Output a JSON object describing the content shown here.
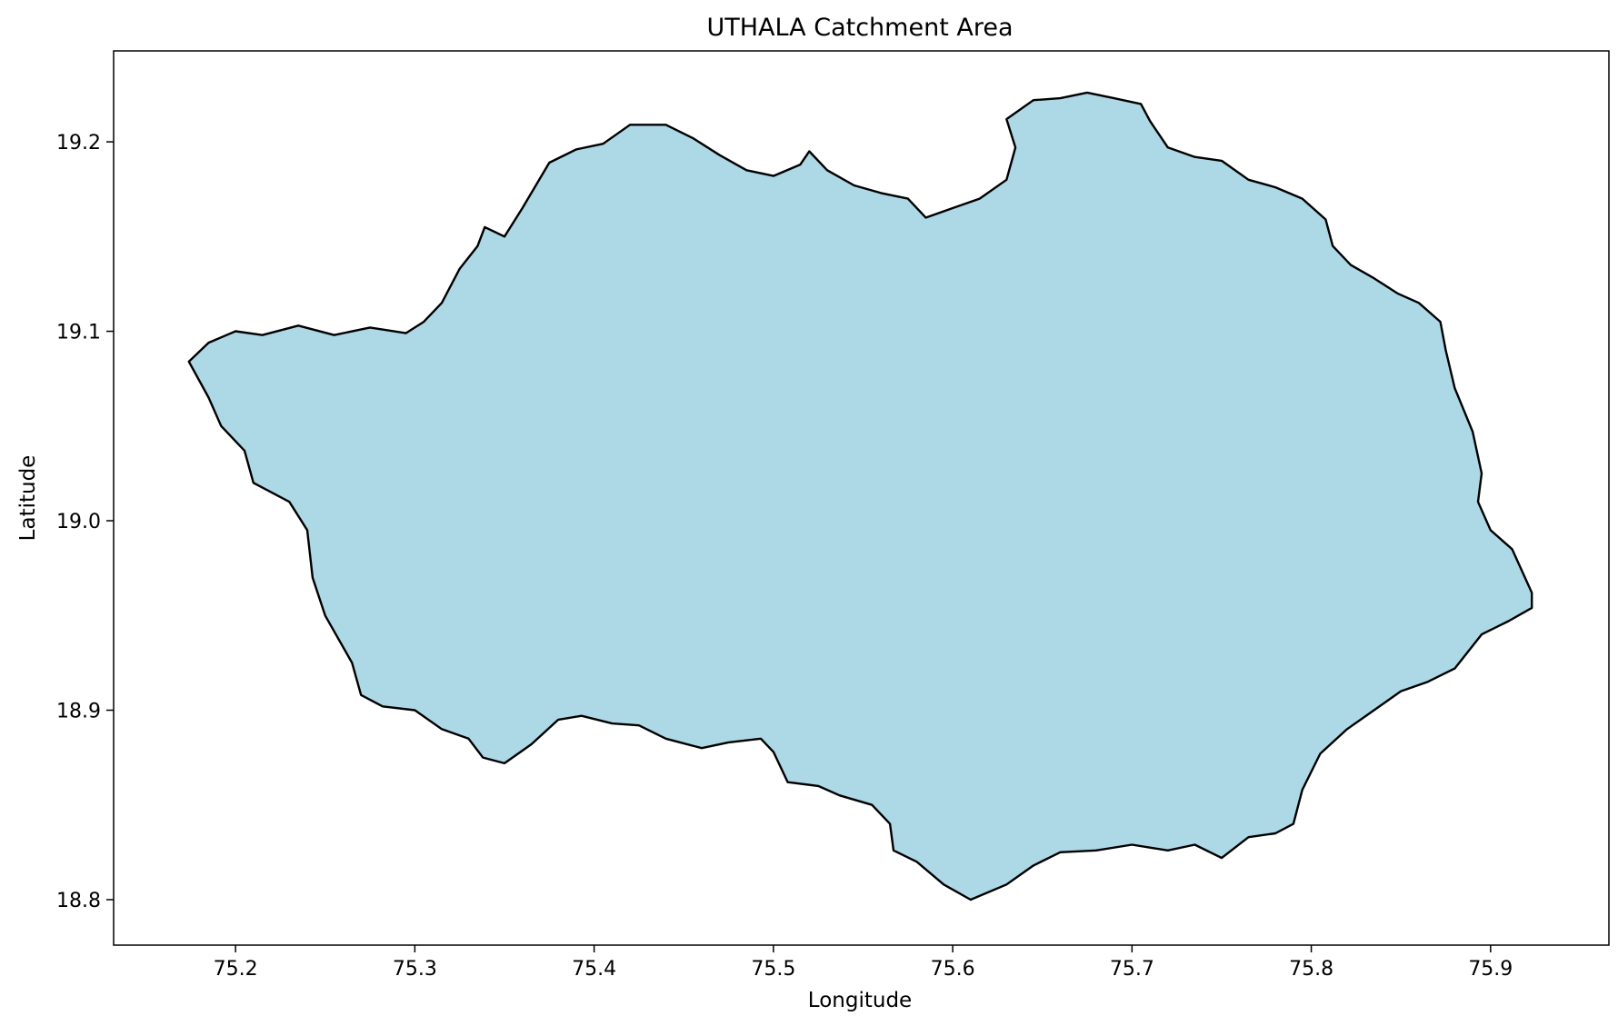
{
  "title": "UTHALA Catchment Area",
  "xlabel": "Longitude",
  "ylabel": "Latitude",
  "fill_color": "#add8e6",
  "edge_color": "#000000",
  "chart_data": {
    "type": "map",
    "title": "UTHALA Catchment Area",
    "xlabel": "Longitude",
    "ylabel": "Latitude",
    "xlim": [
      75.132,
      75.966
    ],
    "ylim": [
      18.776,
      19.248
    ],
    "xticks": [
      75.2,
      75.3,
      75.4,
      75.5,
      75.6,
      75.7,
      75.8,
      75.9
    ],
    "xtick_labels": [
      "75.2",
      "75.3",
      "75.4",
      "75.5",
      "75.6",
      "75.7",
      "75.8",
      "75.9"
    ],
    "yticks": [
      18.8,
      18.9,
      19.0,
      19.1,
      19.2
    ],
    "ytick_labels": [
      "18.8",
      "18.9",
      "19.0",
      "19.1",
      "19.2"
    ],
    "grid": false,
    "boundary_lonlat": [
      [
        75.174,
        19.084
      ],
      [
        75.185,
        19.094
      ],
      [
        75.2,
        19.1
      ],
      [
        75.215,
        19.098
      ],
      [
        75.235,
        19.103
      ],
      [
        75.255,
        19.098
      ],
      [
        75.275,
        19.102
      ],
      [
        75.295,
        19.099
      ],
      [
        75.305,
        19.105
      ],
      [
        75.315,
        19.115
      ],
      [
        75.325,
        19.133
      ],
      [
        75.335,
        19.145
      ],
      [
        75.339,
        19.155
      ],
      [
        75.35,
        19.15
      ],
      [
        75.36,
        19.165
      ],
      [
        75.375,
        19.189
      ],
      [
        75.39,
        19.196
      ],
      [
        75.405,
        19.199
      ],
      [
        75.42,
        19.209
      ],
      [
        75.44,
        19.209
      ],
      [
        75.455,
        19.202
      ],
      [
        75.47,
        19.193
      ],
      [
        75.485,
        19.185
      ],
      [
        75.5,
        19.182
      ],
      [
        75.515,
        19.188
      ],
      [
        75.52,
        19.195
      ],
      [
        75.53,
        19.185
      ],
      [
        75.545,
        19.177
      ],
      [
        75.56,
        19.173
      ],
      [
        75.575,
        19.17
      ],
      [
        75.585,
        19.16
      ],
      [
        75.6,
        19.165
      ],
      [
        75.615,
        19.17
      ],
      [
        75.63,
        19.18
      ],
      [
        75.635,
        19.197
      ],
      [
        75.63,
        19.212
      ],
      [
        75.645,
        19.222
      ],
      [
        75.66,
        19.223
      ],
      [
        75.675,
        19.226
      ],
      [
        75.69,
        19.223
      ],
      [
        75.705,
        19.22
      ],
      [
        75.71,
        19.211
      ],
      [
        75.72,
        19.197
      ],
      [
        75.735,
        19.192
      ],
      [
        75.75,
        19.19
      ],
      [
        75.765,
        19.18
      ],
      [
        75.78,
        19.176
      ],
      [
        75.795,
        19.17
      ],
      [
        75.808,
        19.159
      ],
      [
        75.812,
        19.145
      ],
      [
        75.822,
        19.135
      ],
      [
        75.835,
        19.128
      ],
      [
        75.848,
        19.12
      ],
      [
        75.86,
        19.115
      ],
      [
        75.872,
        19.105
      ],
      [
        75.875,
        19.09
      ],
      [
        75.88,
        19.07
      ],
      [
        75.89,
        19.047
      ],
      [
        75.895,
        19.025
      ],
      [
        75.893,
        19.01
      ],
      [
        75.9,
        18.995
      ],
      [
        75.912,
        18.985
      ],
      [
        75.923,
        18.962
      ],
      [
        75.923,
        18.954
      ],
      [
        75.91,
        18.947
      ],
      [
        75.895,
        18.94
      ],
      [
        75.88,
        18.922
      ],
      [
        75.865,
        18.915
      ],
      [
        75.85,
        18.91
      ],
      [
        75.835,
        18.9
      ],
      [
        75.82,
        18.89
      ],
      [
        75.805,
        18.877
      ],
      [
        75.795,
        18.858
      ],
      [
        75.79,
        18.84
      ],
      [
        75.78,
        18.835
      ],
      [
        75.765,
        18.833
      ],
      [
        75.75,
        18.822
      ],
      [
        75.735,
        18.829
      ],
      [
        75.72,
        18.826
      ],
      [
        75.7,
        18.829
      ],
      [
        75.68,
        18.826
      ],
      [
        75.66,
        18.825
      ],
      [
        75.645,
        18.818
      ],
      [
        75.63,
        18.808
      ],
      [
        75.61,
        18.8
      ],
      [
        75.595,
        18.808
      ],
      [
        75.58,
        18.82
      ],
      [
        75.567,
        18.826
      ],
      [
        75.565,
        18.84
      ],
      [
        75.555,
        18.85
      ],
      [
        75.537,
        18.855
      ],
      [
        75.525,
        18.86
      ],
      [
        75.508,
        18.862
      ],
      [
        75.5,
        18.878
      ],
      [
        75.493,
        18.885
      ],
      [
        75.475,
        18.883
      ],
      [
        75.46,
        18.88
      ],
      [
        75.44,
        18.885
      ],
      [
        75.425,
        18.892
      ],
      [
        75.41,
        18.893
      ],
      [
        75.393,
        18.897
      ],
      [
        75.38,
        18.895
      ],
      [
        75.365,
        18.882
      ],
      [
        75.35,
        18.872
      ],
      [
        75.338,
        18.875
      ],
      [
        75.33,
        18.885
      ],
      [
        75.315,
        18.89
      ],
      [
        75.3,
        18.9
      ],
      [
        75.282,
        18.902
      ],
      [
        75.27,
        18.908
      ],
      [
        75.265,
        18.925
      ],
      [
        75.25,
        18.95
      ],
      [
        75.243,
        18.97
      ],
      [
        75.24,
        18.995
      ],
      [
        75.23,
        19.01
      ],
      [
        75.21,
        19.02
      ],
      [
        75.205,
        19.037
      ],
      [
        75.192,
        19.05
      ],
      [
        75.185,
        19.065
      ]
    ]
  }
}
